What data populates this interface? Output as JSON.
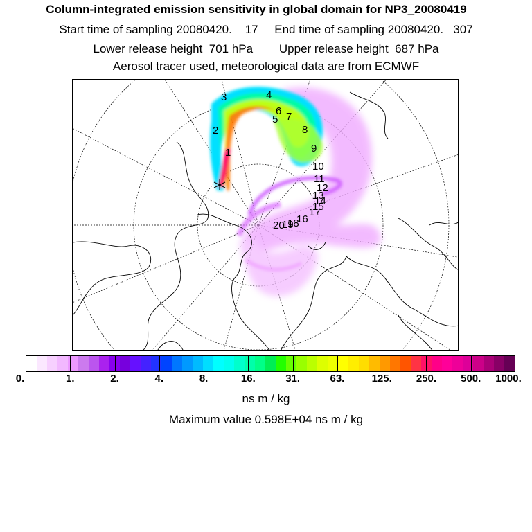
{
  "header": {
    "title": "Column-integrated emission sensitivity in global domain for NP3_20080419",
    "sampling": "Start time of sampling 20080420.    17     End time of sampling 20080420.   307",
    "release": "Lower release height  701 hPa        Upper release height  687 hPa",
    "info": "Aerosol tracer used, meteorological data are from ECMWF"
  },
  "map": {
    "trajectory_labels": [
      "1",
      "2",
      "3",
      "4",
      "5",
      "6",
      "7",
      "8",
      "9",
      "10",
      "11",
      "12",
      "13",
      "14",
      "15",
      "16",
      "17",
      "18",
      "19",
      "20"
    ]
  },
  "legend": {
    "colors": [
      "#ffffff",
      "#fbe8ff",
      "#f7d0ff",
      "#f2b8ff",
      "#ec99ff",
      "#cc7aee",
      "#bb55ee",
      "#aa22ee",
      "#8800ee",
      "#7700dd",
      "#6611ff",
      "#4422ff",
      "#2233ff",
      "#0044ff",
      "#0077ff",
      "#0099ff",
      "#00bbff",
      "#00ddff",
      "#00ffff",
      "#00ffee",
      "#00ffcc",
      "#00ffaa",
      "#00ff88",
      "#00ee55",
      "#22ff00",
      "#66ff00",
      "#99ff00",
      "#bbff00",
      "#ddff00",
      "#eeff00",
      "#ffff00",
      "#ffee00",
      "#ffdd00",
      "#ffbb00",
      "#ff9900",
      "#ff7700",
      "#ff5500",
      "#ff3344",
      "#ff1166",
      "#ff0088",
      "#ff0099",
      "#ee0099",
      "#dd0099",
      "#cc0088",
      "#aa0077",
      "#880066",
      "#660055"
    ],
    "ticks": [
      "0.",
      "1.",
      "2.",
      "4.",
      "8.",
      "16.",
      "31.",
      "63.",
      "125.",
      "250.",
      "500.",
      "1000."
    ],
    "unit": "ns m / kg",
    "max_value": "Maximum value  0.598E+04 ns m / kg"
  }
}
